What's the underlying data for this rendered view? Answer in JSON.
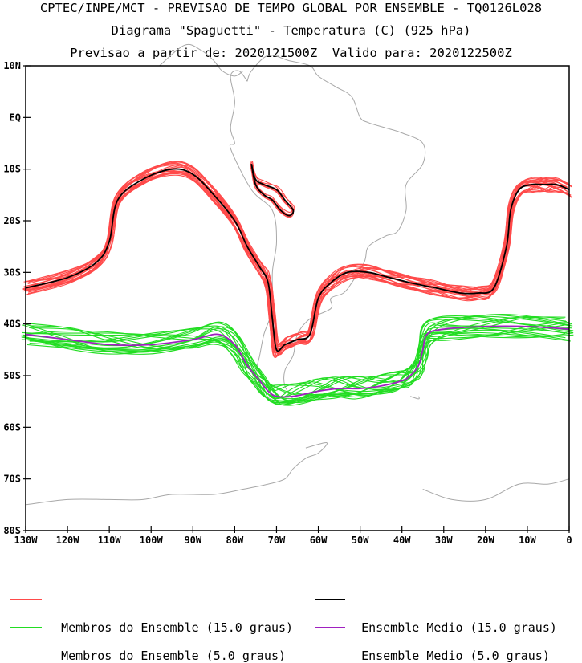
{
  "header": {
    "line1": "CPTEC/INPE/MCT - PREVISAO DE TEMPO GLOBAL POR ENSEMBLE - TQ0126L028",
    "line2": "Diagrama \"Spaguetti\" - Temperatura (C) (925 hPa)",
    "line3": "Previsao a partir de: 2020121500Z  Valido para: 2020122500Z"
  },
  "map": {
    "lat_labels": [
      "10N",
      "EQ",
      "10S",
      "20S",
      "30S",
      "40S",
      "50S",
      "60S",
      "70S",
      "80S"
    ],
    "lon_labels": [
      "130W",
      "120W",
      "110W",
      "100W",
      "90W",
      "80W",
      "70W",
      "60W",
      "50W",
      "40W",
      "30W",
      "20W",
      "10W",
      "0"
    ],
    "lat_range": [
      -80,
      10
    ],
    "lon_range": [
      -130,
      0
    ]
  },
  "legend": {
    "members_15": "Membros do Ensemble (15.0 graus)",
    "mean_15": "Ensemble Medio (15.0 graus)",
    "members_5": "Membros do Ensemble (5.0 graus)",
    "mean_5": "Ensemble Medio (5.0 graus)"
  },
  "colors": {
    "members_15": "#ff4a4a",
    "mean_15": "#000000",
    "members_5": "#22dd22",
    "mean_5": "#a020c0",
    "coast": "#a8a8a8"
  },
  "chart_data": {
    "type": "line",
    "xlabel": "",
    "ylabel": "",
    "xlim": [
      -130,
      0
    ],
    "ylim": [
      -80,
      10
    ],
    "series": [
      {
        "name": "Ensemble Medio (15.0 graus)",
        "x": [
          -130,
          -120,
          -113,
          -110,
          -108,
          -102,
          -95,
          -90,
          -85,
          -80,
          -77,
          -74,
          -72,
          -71,
          -70,
          -68,
          -65,
          -62,
          -60,
          -57,
          -53,
          -48,
          -43,
          -38,
          -32,
          -26,
          -22,
          -18,
          -15,
          -14,
          -12,
          -9,
          -6,
          -3,
          0
        ],
        "y": [
          -33,
          -31,
          -28,
          -24,
          -16,
          -12,
          -10,
          -11,
          -15,
          -20,
          -25,
          -29,
          -32,
          -39,
          -45,
          -44,
          -43,
          -42,
          -35,
          -32,
          -30,
          -30,
          -31,
          -32,
          -33,
          -34,
          -34,
          -33,
          -25,
          -18,
          -14,
          -13,
          -13,
          -13,
          -14
        ]
      },
      {
        "name": "Ensemble Medio (15.0 graus)",
        "x": [
          -76,
          -75,
          -73,
          -70,
          -68,
          -66,
          -67,
          -69,
          -71,
          -73,
          -75,
          -76
        ],
        "y": [
          -9,
          -12,
          -13,
          -14,
          -16,
          -18,
          -19,
          -18,
          -16,
          -15,
          -13,
          -9
        ]
      },
      {
        "name": "Ensemble Medio (5.0 graus)",
        "x": [
          -130,
          -120,
          -110,
          -100,
          -90,
          -84,
          -80,
          -77,
          -74,
          -72,
          -70,
          -66,
          -60,
          -55,
          -50,
          -45,
          -40,
          -38,
          -36,
          -35,
          -34,
          -30,
          -20,
          -10,
          0
        ],
        "y": [
          -42,
          -43,
          -44,
          -44,
          -43,
          -42,
          -44,
          -48,
          -51,
          -53,
          -54,
          -54,
          -53,
          -52.5,
          -52.5,
          -52,
          -51,
          -50,
          -48,
          -45,
          -42,
          -41,
          -40.5,
          -40.5,
          -41
        ]
      }
    ]
  }
}
